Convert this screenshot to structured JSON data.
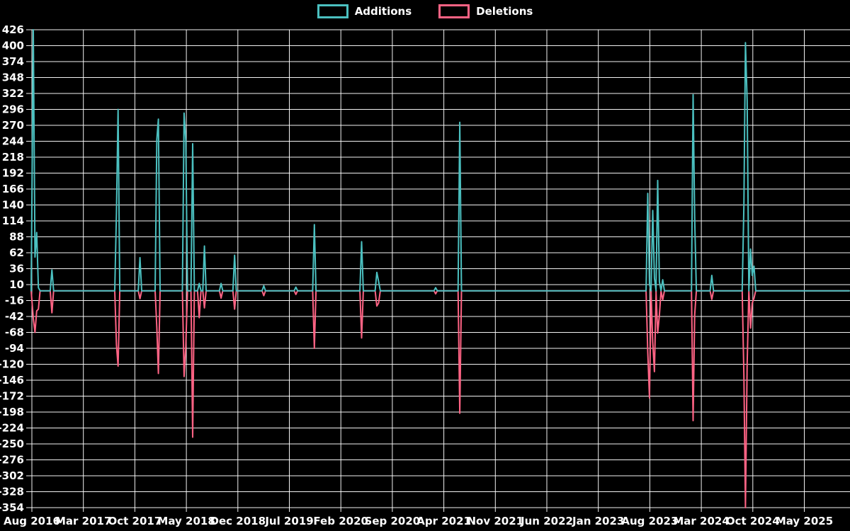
{
  "chart_data": {
    "type": "line",
    "title": "",
    "legend_position": "top",
    "grid": true,
    "background": "#000000",
    "grid_color": "#ffffff",
    "text_color": "#ffffff",
    "ylim": [
      -354,
      426
    ],
    "y_tick_step": 26,
    "y_tick_labels": [
      426,
      400,
      374,
      348,
      322,
      296,
      270,
      244,
      218,
      192,
      166,
      140,
      114,
      88,
      62,
      36,
      10,
      -16,
      -42,
      -68,
      -94,
      -120,
      -146,
      -172,
      -198,
      -224,
      -250,
      -276,
      -302,
      -328,
      -354
    ],
    "x_tick_labels": [
      "Aug 2016",
      "Mar 2017",
      "Oct 2017",
      "May 2018",
      "Dec 2018",
      "Jul 2019",
      "Feb 2020",
      "Sep 2020",
      "Apr 2021",
      "Nov 2021",
      "Jun 2022",
      "Jan 2023",
      "Aug 2023",
      "Mar 2024",
      "Oct 2024",
      "May 2025"
    ],
    "x_tick_interval_months": 7,
    "x_domain_start": "2016-08-01",
    "series": [
      {
        "name": "Additions",
        "color": "#4bc0c0"
      },
      {
        "name": "Deletions",
        "color": "#ff6384"
      }
    ],
    "zero_note": "Weekly series; weeks not listed below are 0 additions and 0 deletions (flat baseline line at y=0 spans the full chart).",
    "weeks": [
      {
        "date": "2016-08-07",
        "additions": 426,
        "deletions": -45
      },
      {
        "date": "2016-08-14",
        "additions": 55,
        "deletions": -68
      },
      {
        "date": "2016-08-21",
        "additions": 95,
        "deletions": -33
      },
      {
        "date": "2016-08-28",
        "additions": 5,
        "deletions": -30
      },
      {
        "date": "2016-10-23",
        "additions": 34,
        "deletions": -36
      },
      {
        "date": "2017-07-16",
        "additions": 128,
        "deletions": -88
      },
      {
        "date": "2017-07-23",
        "additions": 296,
        "deletions": -123
      },
      {
        "date": "2017-10-22",
        "additions": 54,
        "deletions": -13
      },
      {
        "date": "2017-12-31",
        "additions": 247,
        "deletions": -60
      },
      {
        "date": "2018-01-07",
        "additions": 280,
        "deletions": -135
      },
      {
        "date": "2018-04-22",
        "additions": 290,
        "deletions": -140
      },
      {
        "date": "2018-04-29",
        "additions": 245,
        "deletions": -90
      },
      {
        "date": "2018-05-27",
        "additions": 240,
        "deletions": -239
      },
      {
        "date": "2018-06-24",
        "additions": 12,
        "deletions": -44
      },
      {
        "date": "2018-07-15",
        "additions": 73,
        "deletions": -28
      },
      {
        "date": "2018-09-23",
        "additions": 12,
        "deletions": -12
      },
      {
        "date": "2018-11-18",
        "additions": 58,
        "deletions": -30
      },
      {
        "date": "2019-03-17",
        "additions": 8,
        "deletions": -8
      },
      {
        "date": "2019-07-28",
        "additions": 6,
        "deletions": -6
      },
      {
        "date": "2019-10-13",
        "additions": 108,
        "deletions": -94
      },
      {
        "date": "2020-04-26",
        "additions": 80,
        "deletions": -77
      },
      {
        "date": "2020-06-28",
        "additions": 30,
        "deletions": -25
      },
      {
        "date": "2020-07-05",
        "additions": 15,
        "deletions": -20
      },
      {
        "date": "2021-02-28",
        "additions": 5,
        "deletions": -5
      },
      {
        "date": "2021-06-06",
        "additions": 275,
        "deletions": -200
      },
      {
        "date": "2023-07-23",
        "additions": 159,
        "deletions": -100
      },
      {
        "date": "2023-07-30",
        "additions": 10,
        "deletions": -175
      },
      {
        "date": "2023-08-13",
        "additions": 131,
        "deletions": -84
      },
      {
        "date": "2023-08-20",
        "additions": 20,
        "deletions": -132
      },
      {
        "date": "2023-09-03",
        "additions": 180,
        "deletions": -69
      },
      {
        "date": "2023-09-10",
        "additions": 15,
        "deletions": -40
      },
      {
        "date": "2023-09-24",
        "additions": 18,
        "deletions": -15
      },
      {
        "date": "2024-01-28",
        "additions": 320,
        "deletions": -212
      },
      {
        "date": "2024-02-04",
        "additions": 120,
        "deletions": -40
      },
      {
        "date": "2024-04-14",
        "additions": 25,
        "deletions": -14
      },
      {
        "date": "2024-08-25",
        "additions": 139,
        "deletions": -138
      },
      {
        "date": "2024-09-01",
        "additions": 405,
        "deletions": -354
      },
      {
        "date": "2024-09-08",
        "additions": 310,
        "deletions": -120
      },
      {
        "date": "2024-09-22",
        "additions": 68,
        "deletions": -61
      },
      {
        "date": "2024-09-29",
        "additions": 25,
        "deletions": -20
      },
      {
        "date": "2024-10-06",
        "additions": 40,
        "deletions": -12
      }
    ]
  }
}
